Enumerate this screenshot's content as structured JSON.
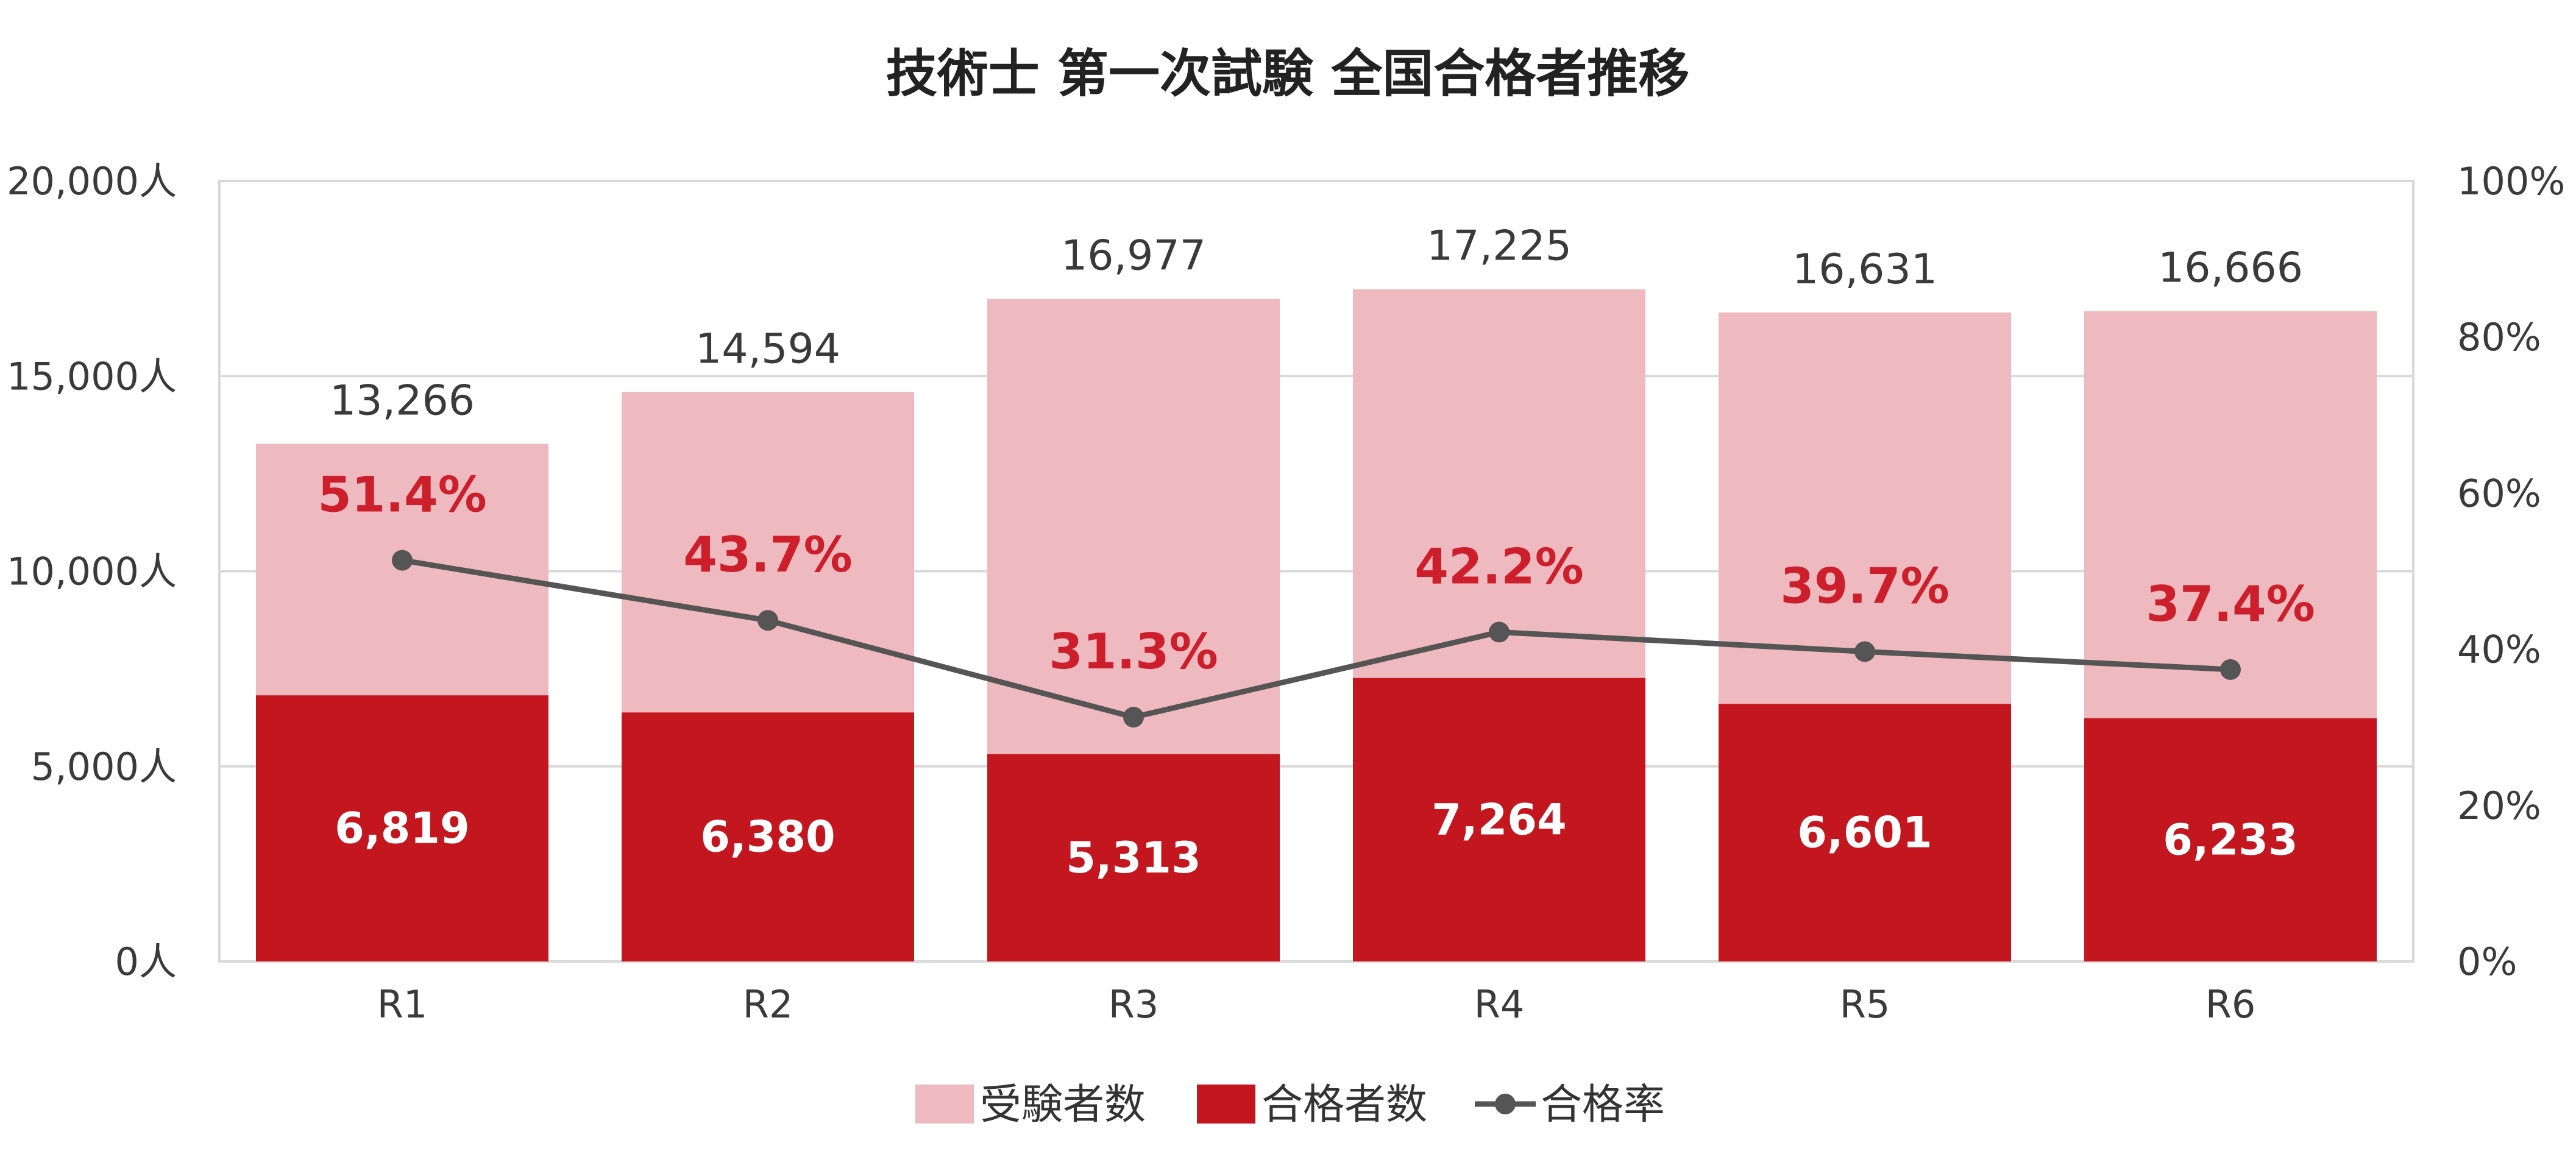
{
  "chart_data": {
    "type": "bar",
    "title": "技術士 第一次試験 全国合格者推移",
    "categories": [
      "R1",
      "R2",
      "R3",
      "R4",
      "R5",
      "R6"
    ],
    "series": [
      {
        "name": "受験者数",
        "type": "bar",
        "axis": "left",
        "values": [
          13266,
          14594,
          16977,
          17225,
          16631,
          16666
        ],
        "labels": [
          "13,266",
          "14,594",
          "16,977",
          "17,225",
          "16,631",
          "16,666"
        ],
        "color": "#efbabf"
      },
      {
        "name": "合格者数",
        "type": "bar",
        "axis": "left",
        "values": [
          6819,
          6380,
          5313,
          7264,
          6601,
          6233
        ],
        "labels": [
          "6,819",
          "6,380",
          "5,313",
          "7,264",
          "6,601",
          "6,233"
        ],
        "color": "#c4161f"
      },
      {
        "name": "合格率",
        "type": "line",
        "axis": "right",
        "values": [
          51.4,
          43.7,
          31.3,
          42.2,
          39.7,
          37.4
        ],
        "labels": [
          "51.4%",
          "43.7%",
          "31.3%",
          "42.2%",
          "39.7%",
          "37.4%"
        ],
        "color": "#555555",
        "label_color": "#cc1e2b"
      }
    ],
    "y_left": {
      "range": [
        0,
        20000
      ],
      "ticks": [
        0,
        5000,
        10000,
        15000,
        20000
      ],
      "tick_labels": [
        "0人",
        "5,000人",
        "10,000人",
        "15,000人",
        "20,000人"
      ]
    },
    "y_right": {
      "range": [
        0,
        100
      ],
      "ticks": [
        0,
        20,
        40,
        60,
        80,
        100
      ],
      "tick_labels": [
        "0%",
        "20%",
        "40%",
        "60%",
        "80%",
        "100%"
      ]
    },
    "grid": true,
    "legend_position": "bottom",
    "bars_overlap": true
  }
}
